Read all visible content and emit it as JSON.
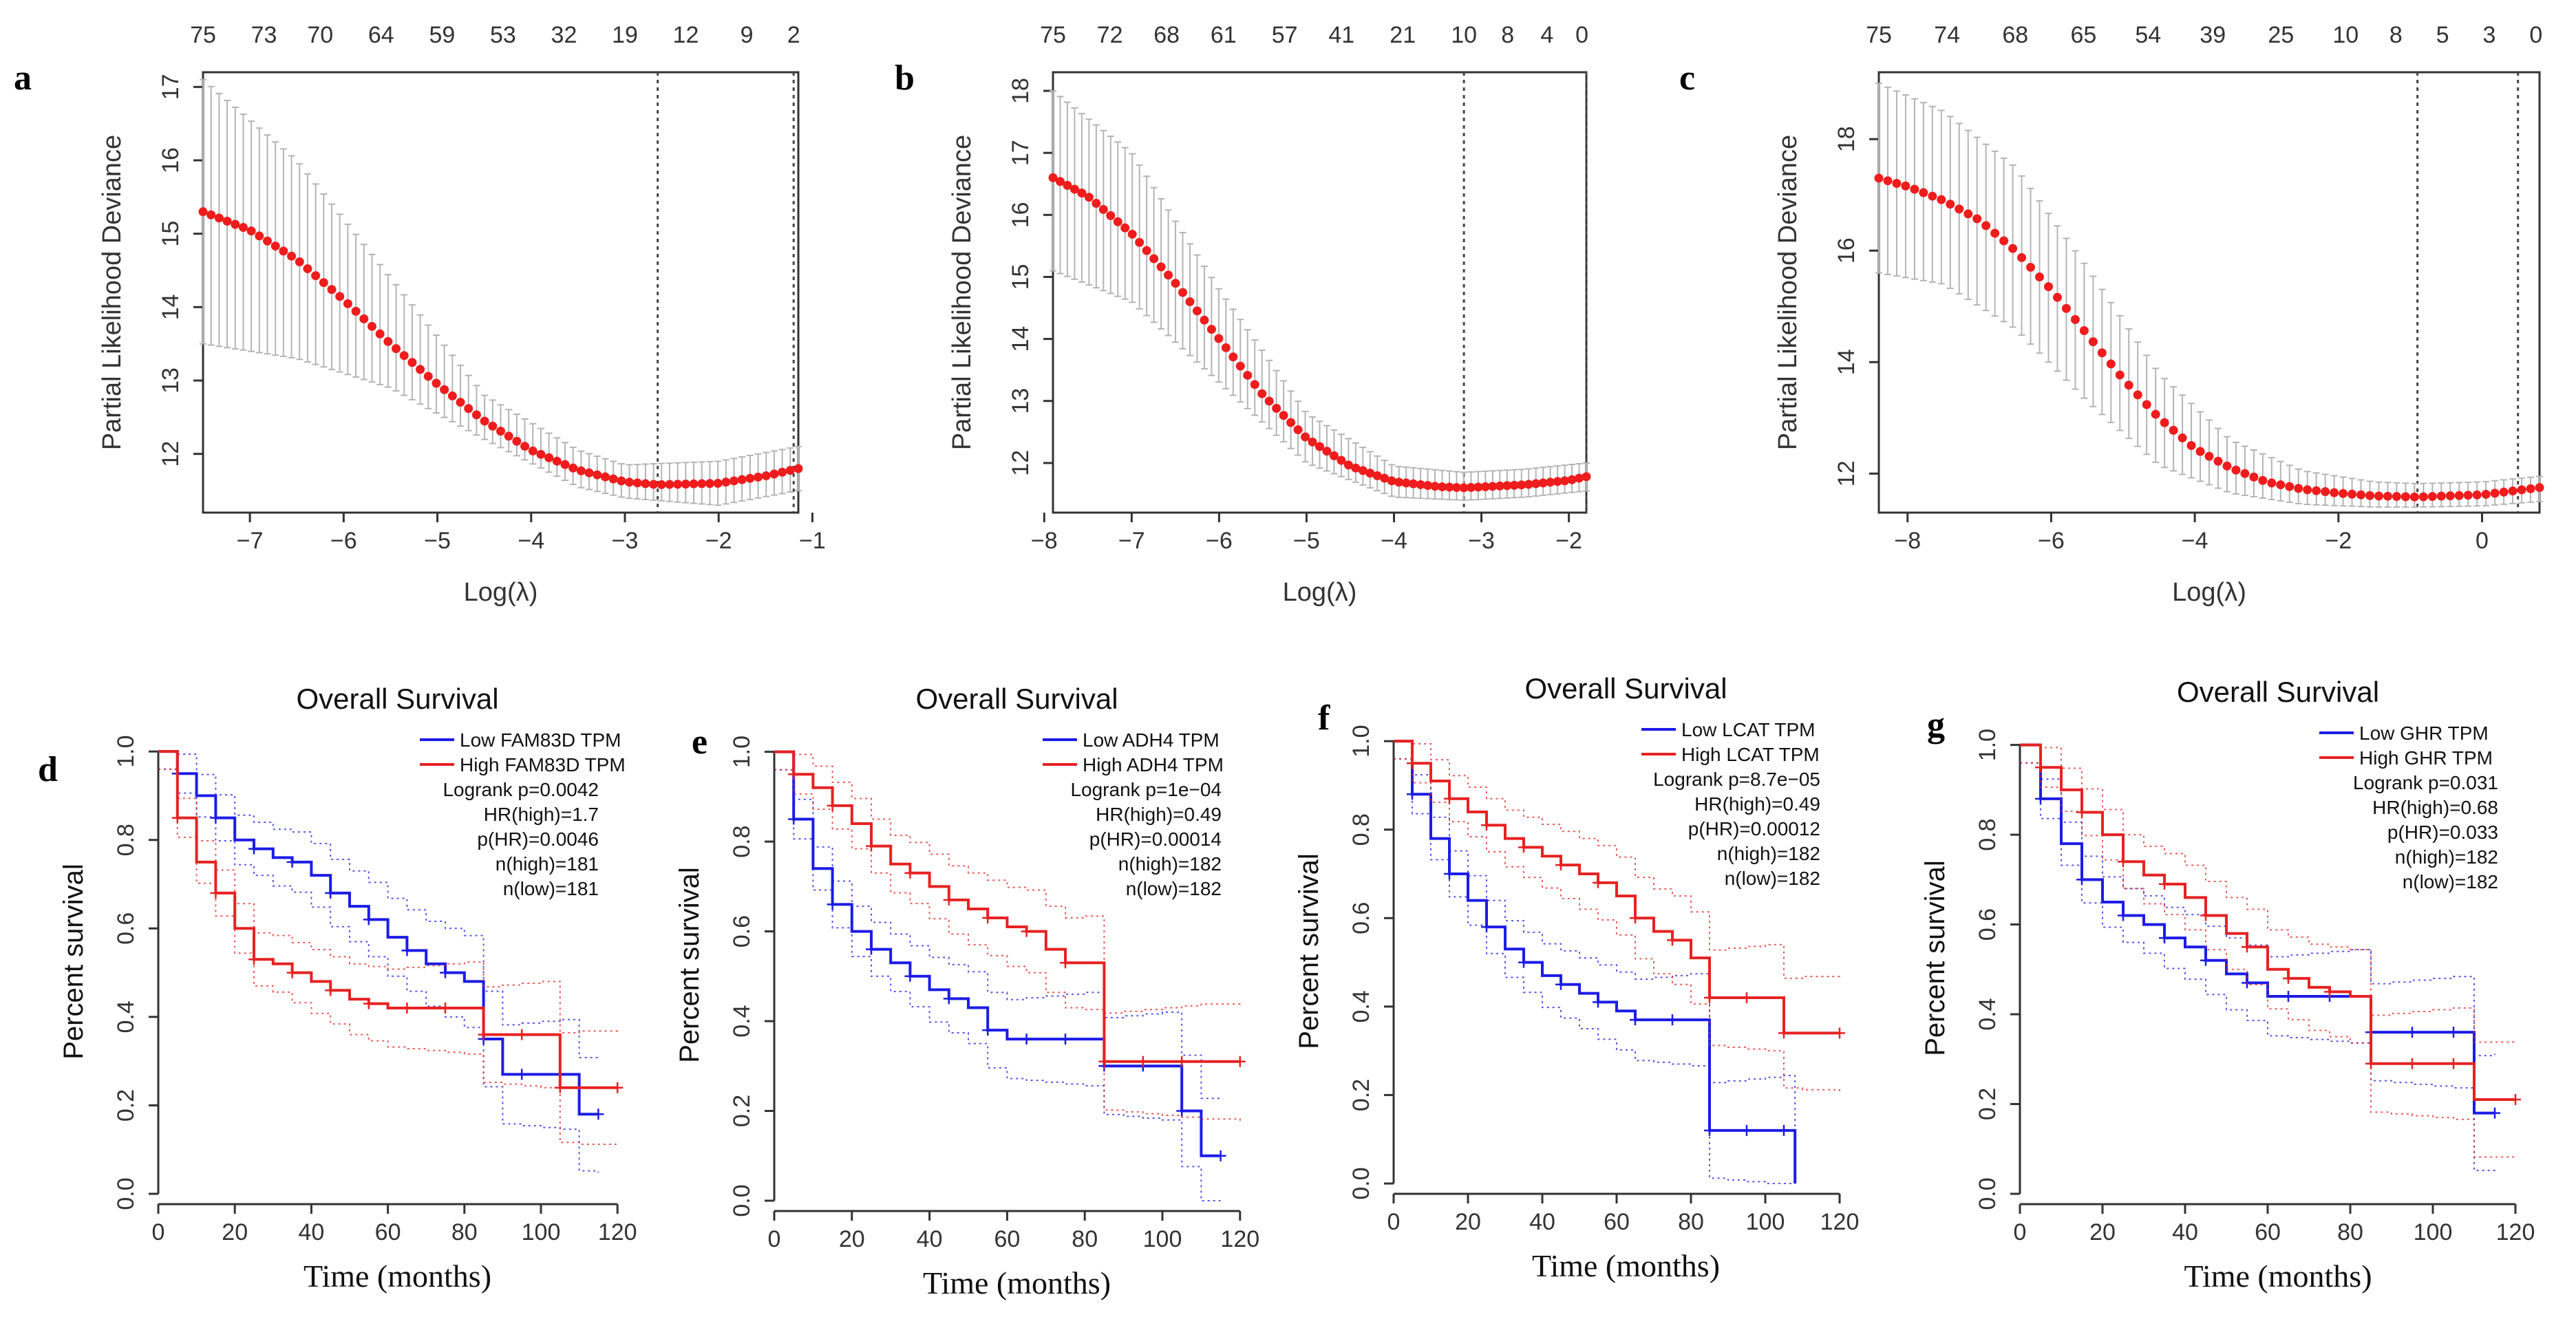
{
  "colors": {
    "lasso_point": "#ee1c1c",
    "error_bar": "#b4b4b4",
    "low_curve": "#1c1ce6",
    "high_curve": "#e62222",
    "axis": "#333333"
  },
  "chart_data": [
    {
      "panel": "a",
      "type": "line",
      "ylabel": "Partial Likelihood Deviance",
      "xlabel": "Log(λ)",
      "xlim": [
        -7.5,
        -1.15
      ],
      "ylim": [
        11.2,
        17.2
      ],
      "xticks": [
        -7,
        -6,
        -5,
        -4,
        -3,
        -2,
        -1
      ],
      "yticks": [
        12,
        13,
        14,
        15,
        16,
        17
      ],
      "top_x": [
        -7.5,
        -6.85,
        -6.25,
        -5.6,
        -4.95,
        -4.3,
        -3.65,
        -3.0,
        -2.35,
        -1.7,
        -1.2
      ],
      "top_labels": [
        "75",
        "73",
        "70",
        "64",
        "59",
        "53",
        "32",
        "19",
        "12",
        "9",
        "2"
      ],
      "curve": {
        "x": [
          -7.5,
          -7.0,
          -6.5,
          -6.0,
          -5.5,
          -5.0,
          -4.5,
          -4.0,
          -3.5,
          -3.0,
          -2.65,
          -2.0,
          -1.5,
          -1.15
        ],
        "y": [
          15.3,
          15.05,
          14.65,
          14.1,
          13.5,
          12.95,
          12.45,
          12.05,
          11.78,
          11.62,
          11.58,
          11.6,
          11.7,
          11.8
        ]
      },
      "err": {
        "x": [
          -7.5,
          -6.5,
          -5.5,
          -4.5,
          -3.5,
          -3.0,
          -2.0,
          -1.15
        ],
        "lo": [
          13.5,
          13.3,
          12.9,
          12.2,
          11.55,
          11.4,
          11.3,
          11.5
        ],
        "hi": [
          17.1,
          16.0,
          14.4,
          12.8,
          12.05,
          11.85,
          11.9,
          12.1
        ]
      },
      "vlines": [
        -2.65,
        -1.2
      ]
    },
    {
      "panel": "b",
      "type": "line",
      "ylabel": "Partial Likelihood Deviance",
      "xlabel": "Log(λ)",
      "xlim": [
        -7.9,
        -1.8
      ],
      "ylim": [
        11.2,
        18.3
      ],
      "xticks": [
        -8,
        -7,
        -6,
        -5,
        -4,
        -3,
        -2
      ],
      "yticks": [
        12,
        13,
        14,
        15,
        16,
        17,
        18
      ],
      "top_x": [
        -7.9,
        -7.25,
        -6.6,
        -5.95,
        -5.25,
        -4.6,
        -3.9,
        -3.2,
        -2.7,
        -2.25,
        -1.85
      ],
      "top_labels": [
        "75",
        "72",
        "68",
        "61",
        "57",
        "41",
        "21",
        "10",
        "8",
        "4",
        "0"
      ],
      "curve": {
        "x": [
          -7.9,
          -7.5,
          -7.0,
          -6.5,
          -6.0,
          -5.5,
          -5.0,
          -4.5,
          -4.0,
          -3.5,
          -3.2,
          -2.5,
          -2.0,
          -1.8
        ],
        "y": [
          16.6,
          16.3,
          15.7,
          14.9,
          14.0,
          13.1,
          12.4,
          11.95,
          11.7,
          11.62,
          11.6,
          11.65,
          11.72,
          11.78
        ]
      },
      "err": {
        "x": [
          -7.9,
          -7.0,
          -6.0,
          -5.0,
          -4.0,
          -3.2,
          -2.5,
          -1.8
        ],
        "lo": [
          15.1,
          14.6,
          13.3,
          12.0,
          11.45,
          11.4,
          11.45,
          11.55
        ],
        "hi": [
          18.0,
          17.0,
          14.8,
          12.8,
          11.95,
          11.85,
          11.9,
          12.0
        ]
      },
      "vlines": [
        -3.2,
        -1.8
      ]
    },
    {
      "panel": "c",
      "type": "line",
      "ylabel": "Partial Likelihood Deviance",
      "xlabel": "Log(λ)",
      "xlim": [
        -8.4,
        0.8
      ],
      "ylim": [
        11.3,
        19.2
      ],
      "xticks": [
        -8,
        -6,
        -4,
        -2,
        0
      ],
      "yticks": [
        12,
        14,
        16,
        18
      ],
      "top_x": [
        -8.4,
        -7.45,
        -6.5,
        -5.55,
        -4.65,
        -3.75,
        -2.8,
        -1.9,
        -1.2,
        -0.55,
        0.1,
        0.75
      ],
      "top_labels": [
        "75",
        "74",
        "68",
        "65",
        "54",
        "39",
        "25",
        "10",
        "8",
        "5",
        "3",
        "0"
      ],
      "curve": {
        "x": [
          -8.4,
          -8.0,
          -7.5,
          -7.0,
          -6.5,
          -6.0,
          -5.5,
          -5.0,
          -4.5,
          -4.0,
          -3.5,
          -3.0,
          -2.5,
          -2.0,
          -1.5,
          -0.9,
          -0.5,
          0.0,
          0.5,
          0.8
        ],
        "y": [
          17.3,
          17.15,
          16.9,
          16.55,
          16.0,
          15.3,
          14.5,
          13.7,
          13.0,
          12.45,
          12.1,
          11.85,
          11.72,
          11.65,
          11.6,
          11.58,
          11.6,
          11.62,
          11.7,
          11.75
        ]
      },
      "err": {
        "x": [
          -8.4,
          -7.5,
          -6.5,
          -5.5,
          -4.5,
          -3.5,
          -2.5,
          -1.5,
          -0.9,
          0.0,
          0.8
        ],
        "lo": [
          15.6,
          15.4,
          14.6,
          13.3,
          12.15,
          11.65,
          11.45,
          11.4,
          11.4,
          11.42,
          11.5
        ],
        "hi": [
          19.0,
          18.5,
          17.5,
          15.7,
          13.8,
          12.6,
          12.05,
          11.85,
          11.82,
          11.85,
          11.95
        ]
      },
      "vlines": [
        -0.9,
        0.5
      ]
    },
    {
      "panel": "d",
      "type": "line",
      "title": "Overall Survival",
      "xlabel": "Time (months)",
      "ylabel": "Percent survival",
      "xlim": [
        0,
        125
      ],
      "ylim": [
        0,
        1.05
      ],
      "xticks": [
        0,
        20,
        40,
        60,
        80,
        100,
        120
      ],
      "yticks": [
        0.0,
        0.2,
        0.4,
        0.6,
        0.8,
        1.0
      ],
      "series": [
        {
          "name": "Low FAM83D TPM",
          "color": "#1c1ce6",
          "x": [
            0,
            5,
            10,
            15,
            20,
            25,
            30,
            35,
            40,
            45,
            50,
            55,
            60,
            65,
            70,
            75,
            80,
            85,
            90,
            95,
            100,
            105,
            110,
            115
          ],
          "y": [
            1.0,
            0.95,
            0.9,
            0.85,
            0.8,
            0.78,
            0.76,
            0.75,
            0.72,
            0.68,
            0.65,
            0.62,
            0.58,
            0.55,
            0.52,
            0.5,
            0.48,
            0.35,
            0.27,
            0.27,
            0.27,
            0.27,
            0.18,
            0.18
          ]
        },
        {
          "name": "High FAM83D TPM",
          "color": "#e62222",
          "x": [
            0,
            5,
            10,
            15,
            20,
            25,
            30,
            35,
            40,
            45,
            50,
            55,
            60,
            65,
            70,
            75,
            80,
            85,
            90,
            95,
            100,
            105,
            110,
            120
          ],
          "y": [
            1.0,
            0.85,
            0.75,
            0.68,
            0.6,
            0.53,
            0.52,
            0.5,
            0.48,
            0.46,
            0.44,
            0.43,
            0.42,
            0.42,
            0.42,
            0.42,
            0.42,
            0.36,
            0.36,
            0.36,
            0.36,
            0.24,
            0.24,
            0.24
          ]
        }
      ],
      "legend": [
        "Logrank p=0.0042",
        "HR(high)=1.7",
        "p(HR)=0.0046",
        "n(high)=181",
        "n(low)=181"
      ]
    },
    {
      "panel": "e",
      "type": "line",
      "title": "Overall Survival",
      "xlabel": "Time (months)",
      "ylabel": "Percent survival",
      "xlim": [
        0,
        125
      ],
      "ylim": [
        0,
        1.05
      ],
      "xticks": [
        0,
        20,
        40,
        60,
        80,
        100,
        120
      ],
      "yticks": [
        0.0,
        0.2,
        0.4,
        0.6,
        0.8,
        1.0
      ],
      "series": [
        {
          "name": "Low ADH4 TPM",
          "color": "#1c1ce6",
          "x": [
            0,
            5,
            10,
            15,
            20,
            25,
            30,
            35,
            40,
            45,
            50,
            55,
            60,
            65,
            70,
            75,
            80,
            85,
            90,
            95,
            100,
            105,
            110,
            115
          ],
          "y": [
            1.0,
            0.85,
            0.74,
            0.66,
            0.6,
            0.56,
            0.53,
            0.5,
            0.47,
            0.45,
            0.43,
            0.38,
            0.36,
            0.36,
            0.36,
            0.36,
            0.36,
            0.3,
            0.3,
            0.3,
            0.3,
            0.2,
            0.1,
            0.1
          ]
        },
        {
          "name": "High ADH4 TPM",
          "color": "#e62222",
          "x": [
            0,
            5,
            10,
            15,
            20,
            25,
            30,
            35,
            40,
            45,
            50,
            55,
            60,
            65,
            70,
            75,
            80,
            85,
            90,
            95,
            100,
            105,
            110,
            120
          ],
          "y": [
            1.0,
            0.95,
            0.92,
            0.88,
            0.84,
            0.79,
            0.75,
            0.73,
            0.7,
            0.67,
            0.65,
            0.63,
            0.61,
            0.6,
            0.56,
            0.53,
            0.53,
            0.31,
            0.31,
            0.31,
            0.31,
            0.31,
            0.31,
            0.31
          ]
        }
      ],
      "legend": [
        "Logrank p=1e−04",
        "HR(high)=0.49",
        "p(HR)=0.00014",
        "n(high)=182",
        "n(low)=182"
      ]
    },
    {
      "panel": "f",
      "type": "line",
      "title": "Overall Survival",
      "xlabel": "Time (months)",
      "ylabel": "Percent survival",
      "xlim": [
        0,
        125
      ],
      "ylim": [
        0,
        1.05
      ],
      "xticks": [
        0,
        20,
        40,
        60,
        80,
        100,
        120
      ],
      "yticks": [
        0.0,
        0.2,
        0.4,
        0.6,
        0.8,
        1.0
      ],
      "series": [
        {
          "name": "Low LCAT TPM",
          "color": "#1c1ce6",
          "x": [
            0,
            5,
            10,
            15,
            20,
            25,
            30,
            35,
            40,
            45,
            50,
            55,
            60,
            65,
            70,
            75,
            80,
            85,
            90,
            95,
            100,
            105,
            108
          ],
          "y": [
            1.0,
            0.88,
            0.78,
            0.7,
            0.64,
            0.58,
            0.53,
            0.5,
            0.47,
            0.45,
            0.43,
            0.41,
            0.39,
            0.37,
            0.37,
            0.37,
            0.37,
            0.12,
            0.12,
            0.12,
            0.12,
            0.12,
            0.0
          ]
        },
        {
          "name": "High LCAT TPM",
          "color": "#e62222",
          "x": [
            0,
            5,
            10,
            15,
            20,
            25,
            30,
            35,
            40,
            45,
            50,
            55,
            60,
            65,
            70,
            75,
            80,
            85,
            90,
            95,
            100,
            105,
            110,
            120
          ],
          "y": [
            1.0,
            0.95,
            0.91,
            0.87,
            0.84,
            0.81,
            0.78,
            0.76,
            0.74,
            0.72,
            0.7,
            0.68,
            0.65,
            0.6,
            0.57,
            0.55,
            0.51,
            0.42,
            0.42,
            0.42,
            0.42,
            0.34,
            0.34,
            0.34
          ]
        }
      ],
      "legend": [
        "Logrank p=8.7e−05",
        "HR(high)=0.49",
        "p(HR)=0.00012",
        "n(high)=182",
        "n(low)=182"
      ]
    },
    {
      "panel": "g",
      "type": "line",
      "title": "Overall Survival",
      "xlabel": "Time (months)",
      "ylabel": "Percent survival",
      "xlim": [
        0,
        125
      ],
      "ylim": [
        0,
        1.05
      ],
      "xticks": [
        0,
        20,
        40,
        60,
        80,
        100,
        120
      ],
      "yticks": [
        0.0,
        0.2,
        0.4,
        0.6,
        0.8,
        1.0
      ],
      "series": [
        {
          "name": "Low GHR TPM",
          "color": "#1c1ce6",
          "x": [
            0,
            5,
            10,
            15,
            20,
            25,
            30,
            35,
            40,
            45,
            50,
            55,
            60,
            65,
            70,
            75,
            80,
            85,
            90,
            95,
            100,
            105,
            110,
            115
          ],
          "y": [
            1.0,
            0.88,
            0.78,
            0.7,
            0.65,
            0.62,
            0.6,
            0.57,
            0.55,
            0.52,
            0.49,
            0.47,
            0.44,
            0.44,
            0.44,
            0.44,
            0.44,
            0.36,
            0.36,
            0.36,
            0.36,
            0.36,
            0.18,
            0.18
          ]
        },
        {
          "name": "High GHR TPM",
          "color": "#e62222",
          "x": [
            0,
            5,
            10,
            15,
            20,
            25,
            30,
            35,
            40,
            45,
            50,
            55,
            60,
            65,
            70,
            75,
            80,
            85,
            90,
            95,
            100,
            105,
            110,
            120
          ],
          "y": [
            1.0,
            0.95,
            0.9,
            0.85,
            0.8,
            0.74,
            0.71,
            0.69,
            0.66,
            0.62,
            0.58,
            0.55,
            0.5,
            0.48,
            0.46,
            0.45,
            0.44,
            0.29,
            0.29,
            0.29,
            0.29,
            0.29,
            0.21,
            0.21
          ]
        }
      ],
      "legend": [
        "Logrank p=0.031",
        "HR(high)=0.68",
        "p(HR)=0.033",
        "n(high)=182",
        "n(low)=182"
      ]
    }
  ]
}
